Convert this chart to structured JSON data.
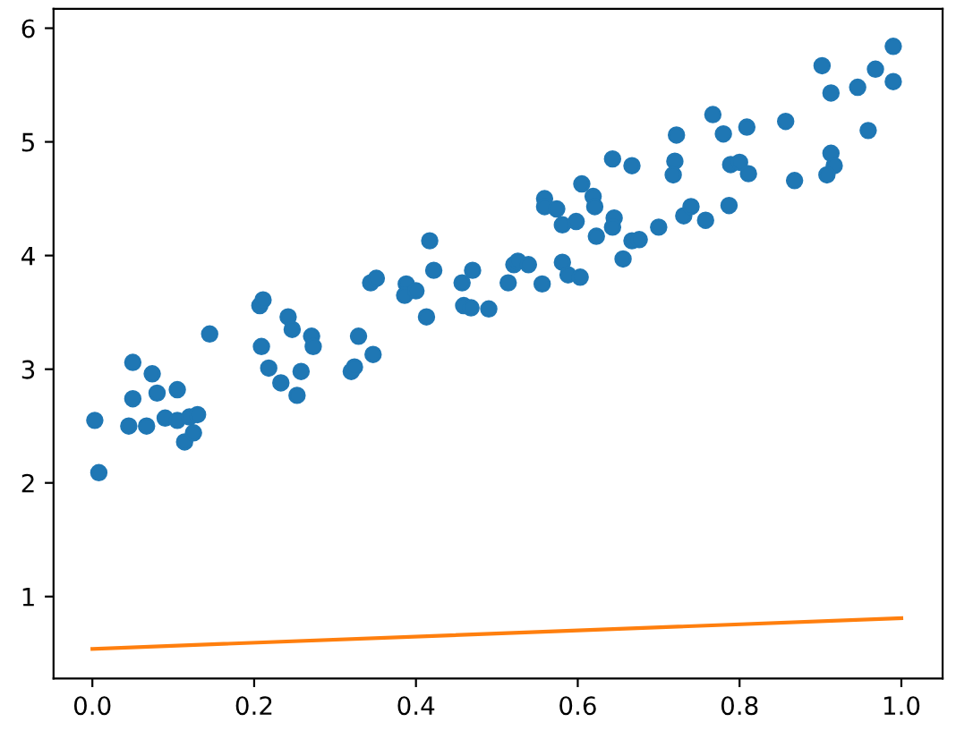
{
  "chart_data": {
    "type": "scatter",
    "xlim": [
      -0.048,
      1.051
    ],
    "ylim": [
      0.28,
      6.17
    ],
    "xticks": [
      {
        "value": 0,
        "label": "0.0"
      },
      {
        "value": 0.2,
        "label": "0.2"
      },
      {
        "value": 0.4,
        "label": "0.4"
      },
      {
        "value": 0.6,
        "label": "0.6"
      },
      {
        "value": 0.8,
        "label": "0.8"
      },
      {
        "value": 1,
        "label": "1.0"
      }
    ],
    "yticks": [
      1,
      2,
      3,
      4,
      5,
      6
    ],
    "grid": false,
    "series": [
      {
        "marker": "circle",
        "color": "#1f77b4",
        "x": [
          0.003,
          0.008,
          0.05,
          0.05,
          0.045,
          0.074,
          0.08,
          0.067,
          0.09,
          0.105,
          0.105,
          0.12,
          0.114,
          0.125,
          0.13,
          0.145,
          0.207,
          0.211,
          0.242,
          0.247,
          0.271,
          0.273,
          0.209,
          0.218,
          0.233,
          0.258,
          0.253,
          0.329,
          0.32,
          0.324,
          0.347,
          0.417,
          0.344,
          0.351,
          0.388,
          0.386,
          0.4,
          0.413,
          0.422,
          0.457,
          0.47,
          0.459,
          0.468,
          0.49,
          0.514,
          0.521,
          0.526,
          0.539,
          0.556,
          0.559,
          0.559,
          0.574,
          0.581,
          0.598,
          0.605,
          0.619,
          0.621,
          0.623,
          0.645,
          0.643,
          0.581,
          0.588,
          0.603,
          0.656,
          0.667,
          0.676,
          0.7,
          0.667,
          0.643,
          0.722,
          0.72,
          0.718,
          0.731,
          0.74,
          0.758,
          0.767,
          0.78,
          0.787,
          0.789,
          0.8,
          0.811,
          0.809,
          0.857,
          0.868,
          0.913,
          0.917,
          0.908,
          0.902,
          0.913,
          0.946,
          0.959,
          0.968,
          0.99,
          0.99
        ],
        "values": [
          2.55,
          2.09,
          3.06,
          2.74,
          2.5,
          2.96,
          2.79,
          2.5,
          2.57,
          2.55,
          2.82,
          2.58,
          2.36,
          2.44,
          2.6,
          3.31,
          3.56,
          3.61,
          3.46,
          3.35,
          3.29,
          3.2,
          3.2,
          3.01,
          2.88,
          2.98,
          2.77,
          3.29,
          2.98,
          3.02,
          3.13,
          4.13,
          3.76,
          3.8,
          3.75,
          3.65,
          3.69,
          3.46,
          3.87,
          3.76,
          3.87,
          3.56,
          3.54,
          3.53,
          3.76,
          3.92,
          3.95,
          3.92,
          3.75,
          4.5,
          4.43,
          4.41,
          4.27,
          4.3,
          4.63,
          4.52,
          4.43,
          4.17,
          4.33,
          4.25,
          3.94,
          3.83,
          3.81,
          3.97,
          4.13,
          4.14,
          4.25,
          4.79,
          4.85,
          5.06,
          4.83,
          4.71,
          4.35,
          4.43,
          4.31,
          5.24,
          5.07,
          4.44,
          4.8,
          4.82,
          4.72,
          5.13,
          5.18,
          4.66,
          4.9,
          4.79,
          4.71,
          5.67,
          5.43,
          5.48,
          5.1,
          5.64,
          5.84,
          5.53
        ]
      },
      {
        "type": "line",
        "marker": "none",
        "color": "#ff7f0e",
        "x": [
          0,
          1
        ],
        "values": [
          0.54,
          0.81
        ]
      }
    ]
  }
}
